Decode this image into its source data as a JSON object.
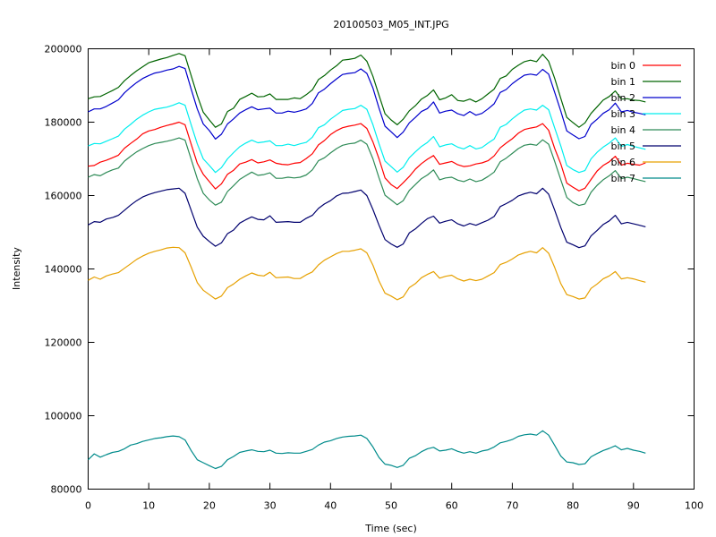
{
  "chart_data": {
    "type": "line",
    "title": "20100503_M05_INT.JPG",
    "xlabel": "Time (sec)",
    "ylabel": "Intensity",
    "xlim": [
      0,
      100
    ],
    "ylim": [
      80000,
      200000
    ],
    "xticks": [
      0,
      10,
      20,
      30,
      40,
      50,
      60,
      70,
      80,
      90,
      100
    ],
    "yticks": [
      80000,
      100000,
      120000,
      140000,
      160000,
      180000,
      200000
    ],
    "grid": false,
    "legend_position": "top-right",
    "x": [
      0,
      1,
      2,
      3,
      4,
      5,
      6,
      7,
      8,
      9,
      10,
      11,
      12,
      13,
      14,
      15,
      16,
      17,
      18,
      19,
      20,
      21,
      22,
      23,
      24,
      25,
      26,
      27,
      28,
      29,
      30,
      31,
      32,
      33,
      34,
      35,
      36,
      37,
      38,
      39,
      40,
      41,
      42,
      43,
      44,
      45,
      46,
      47,
      48,
      49,
      50,
      51,
      52,
      53,
      54,
      55,
      56,
      57,
      58,
      59,
      60,
      61,
      62,
      63,
      64,
      65,
      66,
      67,
      68,
      69,
      70,
      71,
      72,
      73,
      74,
      75,
      76,
      77,
      78,
      79,
      80,
      81,
      82,
      83,
      84,
      85,
      86,
      87,
      88,
      89,
      90,
      91,
      92
    ],
    "series": [
      {
        "name": "bin 0",
        "color": "#ff0000",
        "values": [
          168000,
          168200,
          169100,
          169600,
          170300,
          171000,
          172900,
          174200,
          175400,
          176800,
          177600,
          178000,
          178600,
          179100,
          179500,
          180000,
          179300,
          174000,
          168800,
          165800,
          163800,
          161800,
          163200,
          165800,
          166900,
          168600,
          169100,
          169800,
          168900,
          169200,
          169700,
          168800,
          168500,
          168400,
          168800,
          169000,
          170100,
          171400,
          173800,
          175000,
          176600,
          177700,
          178500,
          178900,
          179200,
          179600,
          178300,
          174600,
          170000,
          164800,
          163000,
          161900,
          163500,
          165200,
          167200,
          168700,
          169900,
          170900,
          168500,
          168900,
          169300,
          168400,
          167900,
          168100,
          168600,
          168900,
          169500,
          170800,
          173000,
          174300,
          175500,
          177000,
          178000,
          178400,
          178700,
          179600,
          177800,
          172800,
          168600,
          163400,
          162300,
          161300,
          162000,
          164400,
          166700,
          168200,
          169200,
          170700,
          168300,
          168800,
          168500,
          168300,
          168900
        ]
      },
      {
        "name": "bin 1",
        "color": "#006400",
        "values": [
          186400,
          186900,
          187000,
          187800,
          188600,
          189500,
          191300,
          192700,
          194000,
          195100,
          196200,
          196700,
          197200,
          197600,
          198200,
          198700,
          198100,
          192700,
          187300,
          182700,
          180600,
          178600,
          179500,
          182900,
          183800,
          186200,
          187000,
          187900,
          186900,
          187000,
          187700,
          186200,
          186200,
          186200,
          186600,
          186400,
          187500,
          188800,
          191600,
          192700,
          194200,
          195400,
          196900,
          197100,
          197400,
          198300,
          196600,
          192500,
          187300,
          182300,
          180600,
          179300,
          180800,
          183100,
          184500,
          186300,
          187300,
          188800,
          186100,
          186600,
          187500,
          185900,
          185700,
          186300,
          185500,
          186400,
          187700,
          189000,
          191900,
          192600,
          194400,
          195500,
          196500,
          196900,
          196500,
          198500,
          196600,
          191900,
          186500,
          181300,
          179900,
          178600,
          179800,
          182400,
          184200,
          186000,
          187000,
          188500,
          186300,
          186400,
          186000,
          185900,
          185500
        ]
      },
      {
        "name": "bin 2",
        "color": "#0000cc",
        "values": [
          182800,
          183600,
          183600,
          184300,
          185200,
          186100,
          188000,
          189500,
          190800,
          191900,
          192700,
          193400,
          193700,
          194200,
          194500,
          195200,
          194600,
          189000,
          183600,
          179500,
          177700,
          175400,
          176700,
          179500,
          180900,
          182500,
          183400,
          184200,
          183400,
          183600,
          183800,
          182500,
          182500,
          183000,
          182700,
          183100,
          183600,
          185100,
          188000,
          189000,
          190500,
          191800,
          193000,
          193300,
          193500,
          194500,
          193300,
          189300,
          183800,
          178900,
          177400,
          175800,
          177300,
          179800,
          181300,
          182900,
          183700,
          185500,
          182500,
          183000,
          183300,
          182300,
          181800,
          182900,
          181900,
          182400,
          183600,
          185000,
          188100,
          188900,
          190500,
          191700,
          192800,
          193100,
          192800,
          194400,
          193100,
          188100,
          183000,
          177600,
          176500,
          175500,
          176100,
          179400,
          180800,
          182400,
          183400,
          185200,
          182800,
          183200,
          182700,
          182400,
          182000
        ]
      },
      {
        "name": "bin 3",
        "color": "#00eeee",
        "values": [
          173500,
          174200,
          174100,
          174800,
          175500,
          176200,
          178100,
          179400,
          180800,
          181900,
          182800,
          183500,
          183800,
          184100,
          184600,
          185300,
          184600,
          179300,
          174100,
          170000,
          168200,
          166300,
          167600,
          170000,
          171700,
          173300,
          174300,
          175100,
          174400,
          174600,
          174900,
          173600,
          173600,
          174000,
          173600,
          174100,
          174500,
          175900,
          178500,
          179300,
          180800,
          182000,
          183200,
          183500,
          183700,
          184600,
          183500,
          179300,
          174100,
          169400,
          167900,
          166400,
          167700,
          170300,
          171900,
          173400,
          174500,
          176100,
          173300,
          173800,
          174100,
          173200,
          172700,
          173600,
          172700,
          173100,
          174300,
          175400,
          178600,
          179400,
          180900,
          182200,
          183300,
          183600,
          183300,
          184600,
          183400,
          178400,
          173500,
          168200,
          167100,
          166300,
          166800,
          170000,
          171800,
          173200,
          174300,
          175700,
          173400,
          173900,
          173400,
          173000,
          172600
        ]
      },
      {
        "name": "bin 4",
        "color": "#2e8b57",
        "values": [
          165000,
          165700,
          165400,
          166300,
          167000,
          167500,
          169400,
          170700,
          171900,
          172800,
          173600,
          174200,
          174500,
          174800,
          175200,
          175700,
          175100,
          169900,
          164600,
          160600,
          158800,
          157400,
          158200,
          161100,
          162700,
          164400,
          165400,
          166400,
          165500,
          165700,
          166200,
          164700,
          164700,
          165000,
          164800,
          165000,
          165600,
          167000,
          169500,
          170300,
          171600,
          172800,
          173700,
          174100,
          174300,
          175100,
          174000,
          170000,
          164800,
          160100,
          158800,
          157500,
          158600,
          161400,
          163000,
          164600,
          165600,
          167000,
          164300,
          164800,
          165000,
          164200,
          163800,
          164500,
          163800,
          164200,
          165200,
          166400,
          169200,
          170200,
          171500,
          172800,
          173700,
          174000,
          173700,
          175200,
          174000,
          169300,
          164300,
          159500,
          158100,
          157300,
          157700,
          160900,
          162800,
          164300,
          165400,
          166800,
          164600,
          165000,
          164600,
          164200,
          163800
        ]
      },
      {
        "name": "bin 5",
        "color": "#00006e",
        "values": [
          152000,
          152900,
          152700,
          153600,
          154000,
          154600,
          156000,
          157400,
          158600,
          159600,
          160300,
          160800,
          161200,
          161600,
          161800,
          162000,
          160600,
          156000,
          151400,
          148900,
          147500,
          146200,
          147100,
          149600,
          150600,
          152500,
          153400,
          154200,
          153500,
          153400,
          154500,
          152700,
          152800,
          152900,
          152700,
          152700,
          153800,
          154600,
          156500,
          157700,
          158600,
          159900,
          160600,
          160700,
          161100,
          161500,
          160000,
          156200,
          151900,
          148000,
          146800,
          145900,
          146800,
          149800,
          150900,
          152400,
          153700,
          154400,
          152500,
          153000,
          153400,
          152300,
          151700,
          152400,
          151900,
          152600,
          153300,
          154300,
          157000,
          157800,
          158700,
          159900,
          160500,
          160900,
          160500,
          162000,
          160400,
          156000,
          151300,
          147300,
          146600,
          145800,
          146300,
          149000,
          150500,
          152100,
          153100,
          154600,
          152300,
          152700,
          152300,
          151900,
          151500
        ]
      },
      {
        "name": "bin 6",
        "color": "#e6a000",
        "values": [
          136900,
          137800,
          137200,
          138100,
          138600,
          139000,
          140200,
          141400,
          142600,
          143500,
          144300,
          144800,
          145200,
          145700,
          145900,
          145800,
          144400,
          140500,
          136300,
          134200,
          133000,
          131800,
          132600,
          134900,
          135900,
          137200,
          138100,
          138900,
          138300,
          138100,
          139100,
          137600,
          137700,
          137800,
          137400,
          137400,
          138400,
          139200,
          141100,
          142400,
          143300,
          144200,
          144800,
          144800,
          145100,
          145500,
          144400,
          141000,
          136700,
          133400,
          132600,
          131600,
          132400,
          134900,
          136000,
          137600,
          138500,
          139300,
          137500,
          138000,
          138300,
          137300,
          136700,
          137200,
          136800,
          137200,
          138100,
          139000,
          141200,
          141800,
          142700,
          143800,
          144400,
          144800,
          144400,
          145800,
          144300,
          140400,
          136000,
          133000,
          132500,
          131800,
          132100,
          134700,
          135900,
          137300,
          138100,
          139300,
          137300,
          137600,
          137300,
          136800,
          136400
        ]
      },
      {
        "name": "bin 7",
        "color": "#008b8b",
        "values": [
          88000,
          89600,
          88700,
          89400,
          90000,
          90300,
          91000,
          92000,
          92400,
          93000,
          93400,
          93800,
          94000,
          94300,
          94500,
          94300,
          93400,
          90500,
          88000,
          87200,
          86400,
          85600,
          86200,
          88000,
          88900,
          90000,
          90400,
          90700,
          90300,
          90200,
          90600,
          89800,
          89700,
          89900,
          89800,
          89800,
          90300,
          90800,
          92000,
          92800,
          93200,
          93800,
          94200,
          94400,
          94500,
          94700,
          93800,
          91500,
          88600,
          86800,
          86500,
          85900,
          86500,
          88400,
          89100,
          90200,
          91000,
          91400,
          90400,
          90600,
          91000,
          90300,
          89800,
          90200,
          89800,
          90400,
          90700,
          91500,
          92600,
          93000,
          93500,
          94400,
          94800,
          95000,
          94700,
          95900,
          94700,
          91900,
          89000,
          87400,
          87200,
          86700,
          86900,
          88800,
          89700,
          90500,
          91100,
          91800,
          90700,
          91100,
          90600,
          90300,
          89800
        ]
      }
    ]
  }
}
